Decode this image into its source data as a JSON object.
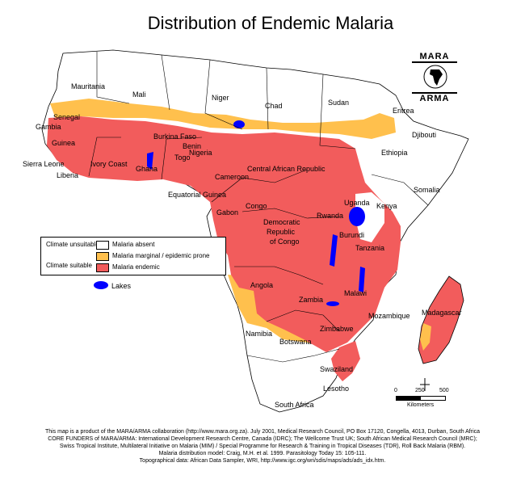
{
  "title": "Distribution of Endemic Malaria",
  "logo": {
    "top": "MARA",
    "bottom": "ARMA",
    "icon": "globe-africa-icon"
  },
  "legend": {
    "climate_unsuitable": "Climate unsuitable",
    "climate_suitable": "Climate suitable",
    "items": [
      {
        "label": "Malaria absent",
        "color": "#ffffff"
      },
      {
        "label": "Malaria marginal / epidemic prone",
        "color": "#ffc04d"
      },
      {
        "label": "Malaria endemic",
        "color": "#f25c5c"
      }
    ],
    "lakes": {
      "label": "Lakes",
      "color": "#0000ff"
    }
  },
  "colors": {
    "absent": "#ffffff",
    "marginal": "#ffc04d",
    "endemic": "#f25c5c",
    "lakes": "#0000ff",
    "border": "#000000"
  },
  "countries": [
    "Mauritania",
    "Mali",
    "Niger",
    "Chad",
    "Sudan",
    "Eritrea",
    "Djibouti",
    "Senegal",
    "Gambia",
    "Guinea",
    "Burkina Faso",
    "Benin",
    "Togo",
    "Nigeria",
    "Ethiopia",
    "Sierra Leone",
    "Liberia",
    "Ivory Coast",
    "Ghana",
    "Cameroon",
    "Central African Republic",
    "Somalia",
    "Equatorial Guinea",
    "Uganda",
    "Kenya",
    "Gabon",
    "Congo",
    "Rwanda",
    "Democratic Republic of Congo",
    "Burundi",
    "Tanzania",
    "Angola",
    "Malawi",
    "Zambia",
    "Madagascar",
    "Zimbabwe",
    "Mozambique",
    "Namibia",
    "Botswana",
    "Swaziland",
    "Lesotho",
    "South Africa"
  ],
  "scale": {
    "ticks": [
      "0",
      "250",
      "500"
    ],
    "unit": "Kilometers"
  },
  "credits": [
    "This map is a product of the MARA/ARMA collaboration (http://www.mara.org.za).  July 2001, Medical Research Council, PO Box 17120, Congella, 4013, Durban, South Africa",
    "CORE FUNDERS of MARA/ARMA: International Development Research Centre, Canada (IDRC); The Wellcome Trust UK; South African Medical Research Council (MRC);",
    "Swiss Tropical Institute, Multilateral Initiative on Malaria (MIM) / Special Programme for Research & Training in Tropical Diseases (TDR), Roll Back Malaria (RBM).",
    "Malaria distribution model: Craig, M.H. et al. 1999.  Parasitology Today 15: 105-111.",
    "Topographical data: African Data Sampler, WRI, http://www.igc.org/wri/sdis/maps/ads/ads_idx.htm."
  ]
}
